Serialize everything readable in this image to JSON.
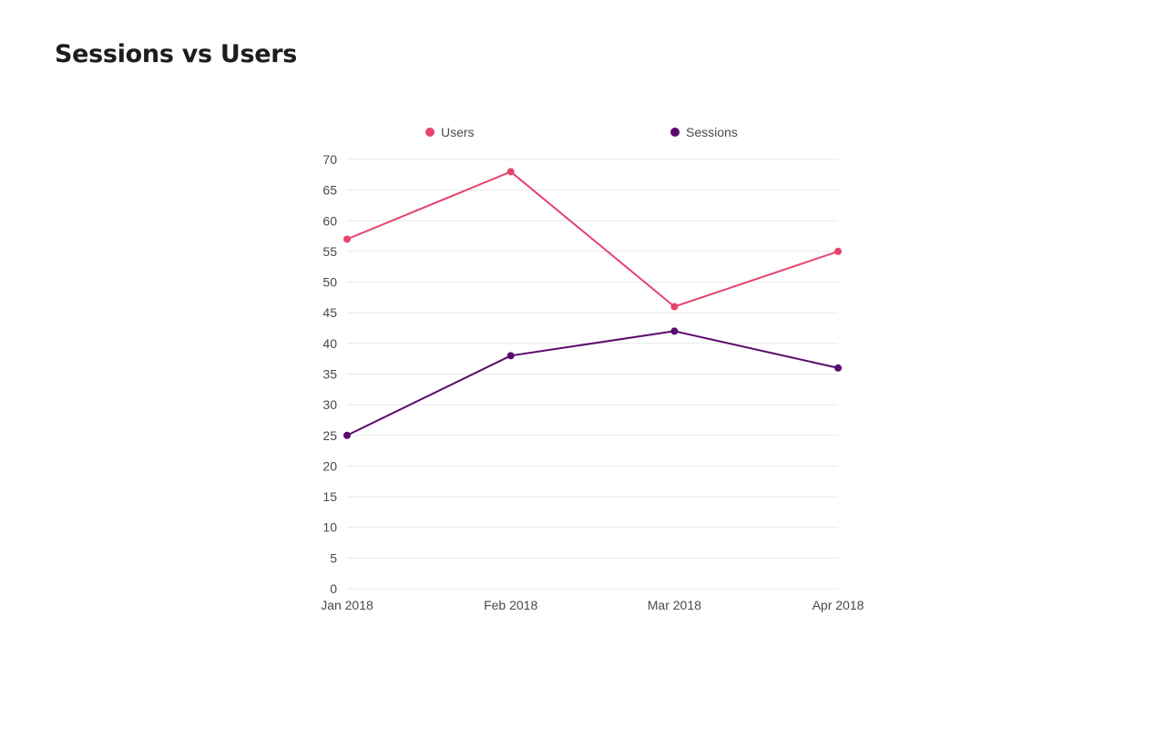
{
  "page": {
    "title": "Sessions vs Users"
  },
  "chart_data": {
    "type": "line",
    "title": "",
    "xlabel": "",
    "ylabel": "",
    "categories": [
      "Jan 2018",
      "Feb 2018",
      "Mar 2018",
      "Apr 2018"
    ],
    "ylim": [
      0,
      70
    ],
    "yticks": [
      0,
      5,
      10,
      15,
      20,
      25,
      30,
      35,
      40,
      45,
      50,
      55,
      60,
      65,
      70
    ],
    "grid": true,
    "legend_position": "top",
    "series": [
      {
        "name": "Users",
        "color": "#e5446d",
        "values": [
          57,
          68,
          46,
          55
        ]
      },
      {
        "name": "Sessions",
        "color": "#5a0b6b",
        "values": [
          25,
          38,
          42,
          36
        ]
      }
    ]
  }
}
